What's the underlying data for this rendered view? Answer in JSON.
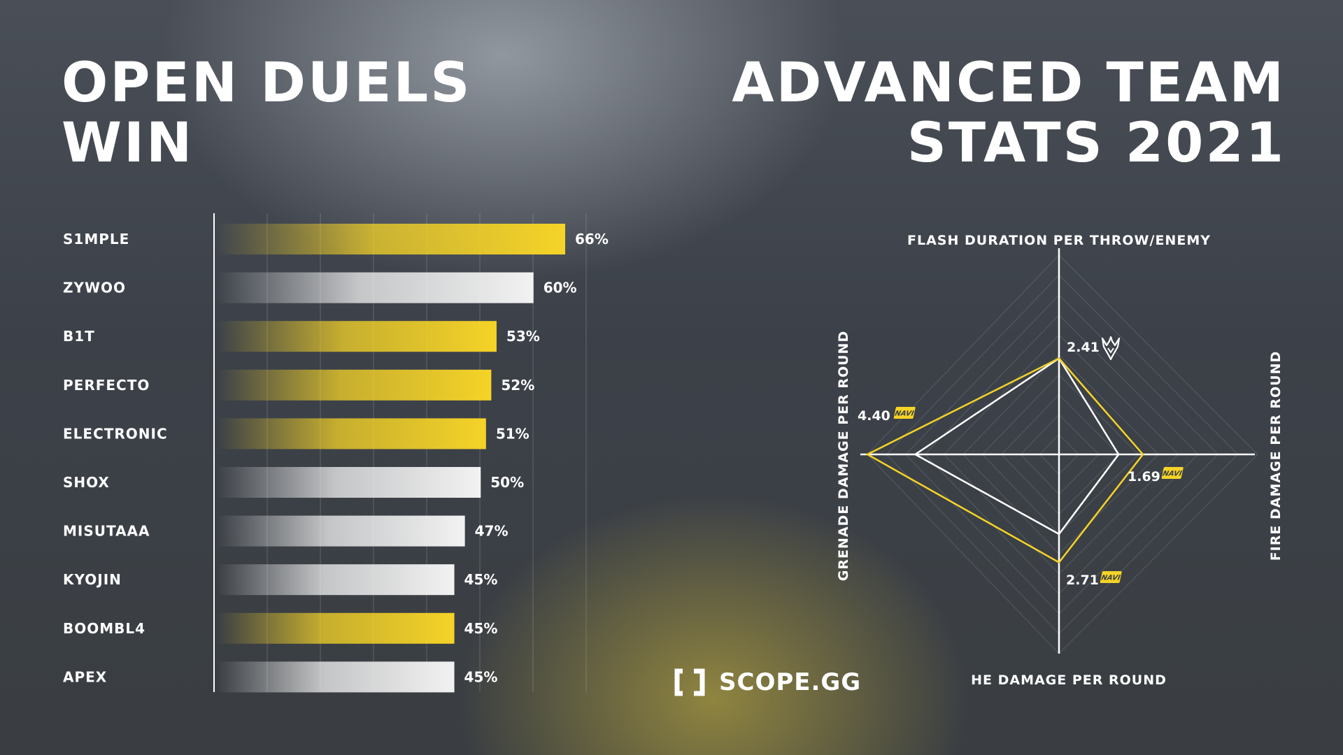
{
  "titles": {
    "left": [
      "OPEN DUELS",
      "WIN"
    ],
    "right": [
      "ADVANCED TEAM",
      "STATS 2021"
    ]
  },
  "brand": {
    "name": "SCOPE.GG",
    "icon": "scope-bracket-logo"
  },
  "colors": {
    "highlight": "#f5d327",
    "neutral": "#f2f2f2",
    "navi": "#f5d327",
    "vitality": "#ffffff"
  },
  "chart_data": [
    {
      "type": "bar",
      "orientation": "horizontal",
      "title": "OPEN DUELS WIN",
      "categories": [
        "S1MPLE",
        "ZYWOO",
        "B1T",
        "PERFECTO",
        "ELECTRONIC",
        "SHOX",
        "MISUTAAA",
        "KYOJIN",
        "BOOMBL4",
        "APEX"
      ],
      "values": [
        66,
        60,
        53,
        52,
        51,
        50,
        47,
        45,
        45,
        45
      ],
      "value_labels": [
        "66%",
        "60%",
        "53%",
        "52%",
        "51%",
        "50%",
        "47%",
        "45%",
        "45%",
        "45%"
      ],
      "bar_colors": [
        "#f5d327",
        "#f2f2f2",
        "#f5d327",
        "#f5d327",
        "#f5d327",
        "#f2f2f2",
        "#f2f2f2",
        "#f2f2f2",
        "#f5d327",
        "#f2f2f2"
      ],
      "xlim": [
        0,
        70
      ],
      "grid": true
    },
    {
      "type": "radar",
      "title": "ADVANCED TEAM STATS 2021",
      "axes": [
        {
          "label": "FLASH DURATION PER THROW/ENEMY",
          "direction": "top"
        },
        {
          "label": "FIRE DAMAGE PER ROUND",
          "direction": "right"
        },
        {
          "label": "HE DAMAGE PER ROUND",
          "direction": "bottom"
        },
        {
          "label": "GRENADE DAMAGE PER ROUND",
          "direction": "left"
        }
      ],
      "series": [
        {
          "team_icon": "navi-logo",
          "color": "#f5d327",
          "values": [
            2.41,
            1.69,
            2.71,
            4.4
          ]
        },
        {
          "team_icon": "vitality-logo",
          "color": "#ffffff",
          "values": [
            2.41,
            1.2,
            2.0,
            3.3
          ]
        }
      ],
      "value_labels": [
        {
          "axis": "top",
          "text": "2.41",
          "icon": "vitality-logo"
        },
        {
          "axis": "right",
          "text": "1.69",
          "icon": "navi-logo"
        },
        {
          "axis": "bottom",
          "text": "2.71",
          "icon": "navi-logo"
        },
        {
          "axis": "left",
          "text": "4.40",
          "icon": "navi-logo"
        }
      ],
      "axis_max": [
        5,
        4,
        5,
        4.4
      ]
    }
  ]
}
